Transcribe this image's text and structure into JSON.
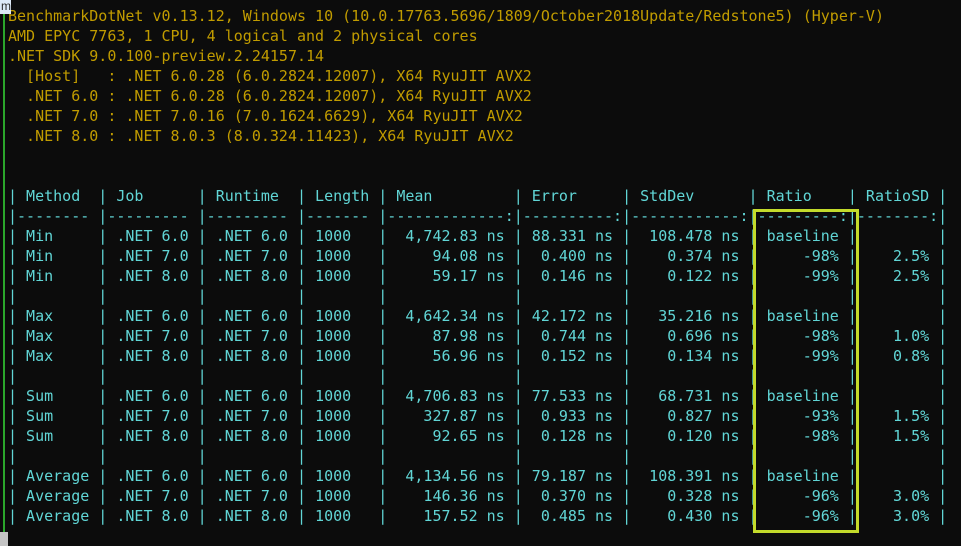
{
  "window": {
    "corner_tab_letter": "m"
  },
  "terminal": {
    "info_lines": [
      "BenchmarkDotNet v0.13.12, Windows 10 (10.0.17763.5696/1809/October2018Update/Redstone5) (Hyper-V)",
      "AMD EPYC 7763, 1 CPU, 4 logical and 2 physical cores",
      ".NET SDK 9.0.100-preview.2.24157.14",
      "  [Host]   : .NET 6.0.28 (6.0.2824.12007), X64 RyuJIT AVX2",
      "  .NET 6.0 : .NET 6.0.28 (6.0.2824.12007), X64 RyuJIT AVX2",
      "  .NET 7.0 : .NET 7.0.16 (7.0.1624.6629), X64 RyuJIT AVX2",
      "  .NET 8.0 : .NET 8.0.3 (8.0.324.11423), X64 RyuJIT AVX2"
    ],
    "table": {
      "columns": [
        "Method",
        "Job",
        "Runtime",
        "Length",
        "Mean",
        "Error",
        "StdDev",
        "Ratio",
        "RatioSD"
      ],
      "groups": [
        {
          "rows": [
            [
              "Min",
              ".NET 6.0",
              ".NET 6.0",
              "1000",
              "4,742.83 ns",
              "88.331 ns",
              "108.478 ns",
              "baseline",
              ""
            ],
            [
              "Min",
              ".NET 7.0",
              ".NET 7.0",
              "1000",
              "94.08 ns",
              "0.400 ns",
              "0.374 ns",
              "-98%",
              "2.5%"
            ],
            [
              "Min",
              ".NET 8.0",
              ".NET 8.0",
              "1000",
              "59.17 ns",
              "0.146 ns",
              "0.122 ns",
              "-99%",
              "2.5%"
            ]
          ]
        },
        {
          "rows": [
            [
              "Max",
              ".NET 6.0",
              ".NET 6.0",
              "1000",
              "4,642.34 ns",
              "42.172 ns",
              "35.216 ns",
              "baseline",
              ""
            ],
            [
              "Max",
              ".NET 7.0",
              ".NET 7.0",
              "1000",
              "87.98 ns",
              "0.744 ns",
              "0.696 ns",
              "-98%",
              "1.0%"
            ],
            [
              "Max",
              ".NET 8.0",
              ".NET 8.0",
              "1000",
              "56.96 ns",
              "0.152 ns",
              "0.134 ns",
              "-99%",
              "0.8%"
            ]
          ]
        },
        {
          "rows": [
            [
              "Sum",
              ".NET 6.0",
              ".NET 6.0",
              "1000",
              "4,706.83 ns",
              "77.533 ns",
              "68.731 ns",
              "baseline",
              ""
            ],
            [
              "Sum",
              ".NET 7.0",
              ".NET 7.0",
              "1000",
              "327.87 ns",
              "0.933 ns",
              "0.827 ns",
              "-93%",
              "1.5%"
            ],
            [
              "Sum",
              ".NET 8.0",
              ".NET 8.0",
              "1000",
              "92.65 ns",
              "0.128 ns",
              "0.120 ns",
              "-98%",
              "1.5%"
            ]
          ]
        },
        {
          "rows": [
            [
              "Average",
              ".NET 6.0",
              ".NET 6.0",
              "1000",
              "4,134.56 ns",
              "79.187 ns",
              "108.391 ns",
              "baseline",
              ""
            ],
            [
              "Average",
              ".NET 7.0",
              ".NET 7.0",
              "1000",
              "146.36 ns",
              "0.370 ns",
              "0.328 ns",
              "-96%",
              "3.0%"
            ],
            [
              "Average",
              ".NET 8.0",
              ".NET 8.0",
              "1000",
              "157.52 ns",
              "0.485 ns",
              "0.430 ns",
              "-96%",
              "3.0%"
            ]
          ]
        }
      ]
    },
    "highlight": {
      "column": "Ratio",
      "color": "#c3db2b"
    },
    "colors": {
      "background": "#0c0c0c",
      "info_text": "#c19c00",
      "table_text": "#61d6d6",
      "left_edge_line": "#2ba62b",
      "highlight_border": "#c3db2b"
    }
  }
}
